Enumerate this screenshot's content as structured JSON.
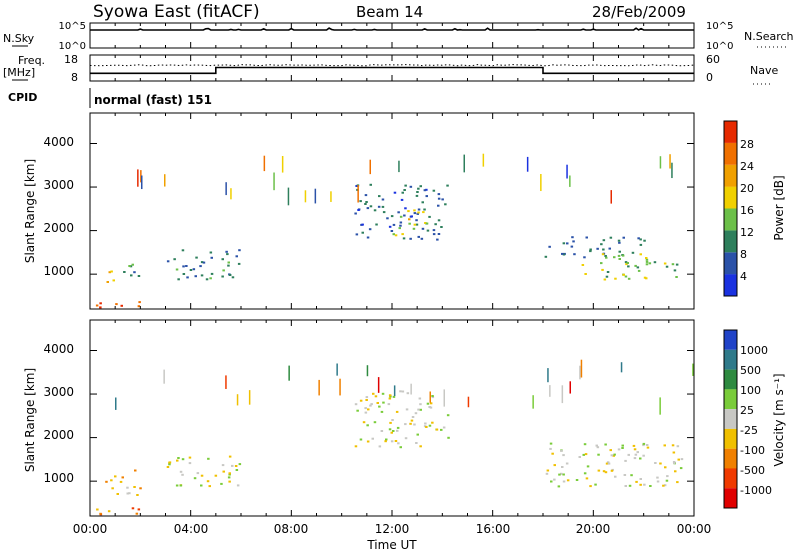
{
  "header": {
    "station": "Syowa East (fitACF)",
    "beam": "Beam 14",
    "date": "28/Feb/2009",
    "cpid_label": "CPID",
    "cpid_value": "normal (fast) 151"
  },
  "noise_panel": {
    "left_label": "N.Sky",
    "right_label": "N.Search",
    "left_ticks": [
      "10^5",
      "10^0"
    ],
    "right_ticks": [
      "10^5",
      "10^0"
    ]
  },
  "freq_panel": {
    "left_label_line1": "Freq.",
    "left_label_line2": "[MHz]",
    "left_ticks": [
      "18",
      "8"
    ],
    "right_label": "Nave",
    "right_ticks": [
      "60",
      "0"
    ]
  },
  "x_axis": {
    "label": "Time UT",
    "ticks": [
      "00:00",
      "04:00",
      "08:00",
      "12:00",
      "16:00",
      "20:00",
      "00:00"
    ]
  },
  "power_panel": {
    "ylabel": "Slant Range [km]",
    "yticks": [
      "1000",
      "2000",
      "3000",
      "4000"
    ],
    "colorbar_label": "Power [dB]",
    "colorbar_ticks": [
      "4",
      "8",
      "12",
      "16",
      "20",
      "24",
      "28"
    ],
    "colors": [
      "#1a32e0",
      "#2b52a8",
      "#2e7f5c",
      "#6cc049",
      "#f0d000",
      "#f0a000",
      "#f07000",
      "#e62a00"
    ]
  },
  "velocity_panel": {
    "ylabel": "Slant Range [km]",
    "yticks": [
      "1000",
      "2000",
      "3000",
      "4000"
    ],
    "colorbar_label": "Velocity [m s⁻¹]",
    "colorbar_ticks": [
      "1000",
      "500",
      "100",
      "25",
      "-25",
      "-100",
      "-500",
      "-1000"
    ],
    "colors": [
      "#2043c8",
      "#2f7a8a",
      "#2e8a40",
      "#7acc3a",
      "#c8c8c4",
      "#f0c000",
      "#f08000",
      "#f03a00",
      "#e00000"
    ]
  },
  "chart_data": [
    {
      "type": "line",
      "title": "Syowa East (fitACF)",
      "subtitle": "Beam 14",
      "panel": "noise",
      "series": [
        {
          "name": "N.Sky",
          "x": [
            0,
            24
          ],
          "values": [
            4.0,
            4.0
          ]
        },
        {
          "name": "N.Search",
          "x": [
            0,
            24
          ],
          "values": [
            0.3,
            0.3
          ]
        }
      ]
    },
    {
      "type": "line",
      "panel": "frequency",
      "series": [
        {
          "name": "Freq.",
          "x": [
            0,
            5,
            5,
            18,
            18,
            24
          ],
          "values": [
            10.5,
            10.5,
            13,
            13,
            10.5,
            10.5
          ]
        },
        {
          "name": "Nave",
          "x": [
            0,
            24
          ],
          "values": [
            36,
            36
          ]
        }
      ]
    },
    {
      "type": "heatmap",
      "panel": "power",
      "xlabel": "Time UT",
      "ylabel": "Slant Range [km]",
      "xlim": [
        0,
        24
      ],
      "ylim": [
        200,
        4700
      ],
      "colorbar": {
        "label": "Power [dB]",
        "range": [
          0,
          32
        ]
      },
      "regions": [
        {
          "t": [
            0.2,
            2.3
          ],
          "r": [
            250,
            450
          ],
          "power": 28
        },
        {
          "t": [
            0.6,
            1.2
          ],
          "r": [
            700,
            1100
          ],
          "power": 20
        },
        {
          "t": [
            1.2,
            2.0
          ],
          "r": [
            800,
            1300
          ],
          "power": 10
        },
        {
          "t": [
            3.0,
            6.0
          ],
          "r": [
            900,
            1600
          ],
          "power": 9
        },
        {
          "t": [
            10.5,
            14.2
          ],
          "r": [
            1800,
            3100
          ],
          "power": 7
        },
        {
          "t": [
            12.0,
            13.5
          ],
          "r": [
            1900,
            2500
          ],
          "power": 18
        },
        {
          "t": [
            18.0,
            22.0
          ],
          "r": [
            1400,
            1900
          ],
          "power": 8
        },
        {
          "t": [
            19.5,
            23.5
          ],
          "r": [
            900,
            1500
          ],
          "power": 14
        }
      ]
    },
    {
      "type": "heatmap",
      "panel": "velocity",
      "xlabel": "Time UT",
      "ylabel": "Slant Range [km]",
      "xlim": [
        0,
        24
      ],
      "ylim": [
        200,
        4700
      ],
      "colorbar": {
        "label": "Velocity [m s⁻¹]",
        "range": [
          -1000,
          1000
        ]
      },
      "regions": [
        {
          "t": [
            0.2,
            2.3
          ],
          "r": [
            250,
            450
          ],
          "velocity": -500
        },
        {
          "t": [
            0.6,
            2.0
          ],
          "r": [
            700,
            1300
          ],
          "velocity": -300
        },
        {
          "t": [
            3.0,
            6.0
          ],
          "r": [
            900,
            1600
          ],
          "velocity": 0
        },
        {
          "t": [
            10.5,
            14.2
          ],
          "r": [
            1800,
            3100
          ],
          "velocity": 0
        },
        {
          "t": [
            18.0,
            23.5
          ],
          "r": [
            900,
            1900
          ],
          "velocity": 0
        }
      ]
    }
  ]
}
